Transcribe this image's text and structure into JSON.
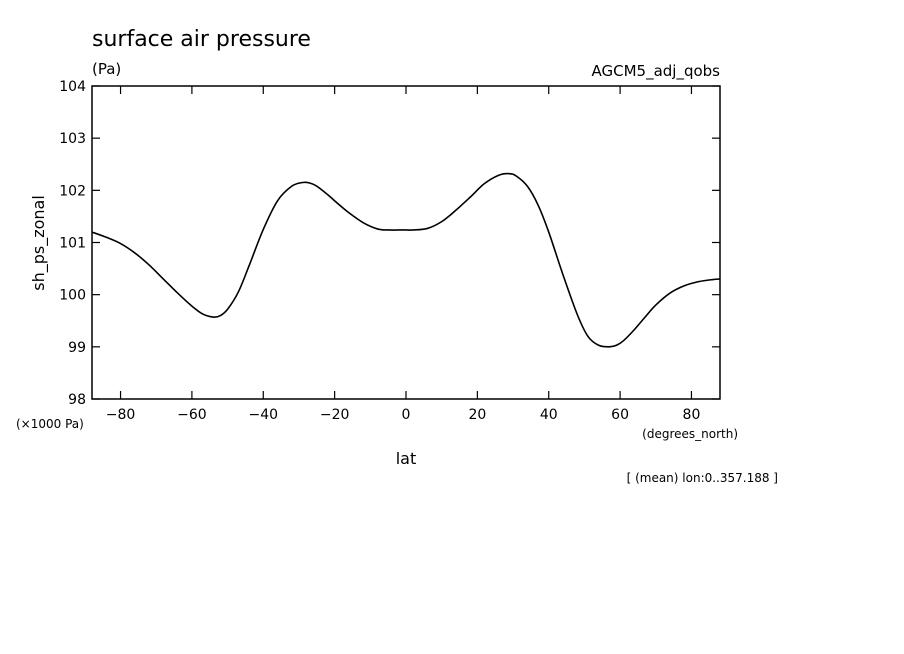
{
  "chart_data": {
    "type": "line",
    "title": "surface air pressure",
    "units_label": "(Pa)",
    "dataset_label": "AGCM5_adj_qobs",
    "xlabel": "lat",
    "x_units": "(degrees_north)",
    "ylabel": "sh_ps_zonal",
    "y_scale_label": "(×1000 Pa)",
    "footnote": "[ (mean) lon:0..357.188 ]",
    "xlim": [
      -88,
      88
    ],
    "ylim": [
      98,
      104
    ],
    "x_ticks": [
      -80,
      -60,
      -40,
      -20,
      0,
      20,
      40,
      60,
      80
    ],
    "x_tick_labels": [
      "−80",
      "−60",
      "−40",
      "−20",
      "0",
      "20",
      "40",
      "60",
      "80"
    ],
    "y_ticks": [
      98,
      99,
      100,
      101,
      102,
      103,
      104
    ],
    "y_tick_labels": [
      "98",
      "99",
      "100",
      "101",
      "102",
      "103",
      "104"
    ],
    "grid": false,
    "line_color": "#000000",
    "series": [
      {
        "x": [
          -88,
          -84,
          -80,
          -76,
          -72,
          -68,
          -64,
          -60,
          -57,
          -54,
          -52,
          -50,
          -47,
          -44,
          -40,
          -36,
          -32,
          -29,
          -27,
          -25,
          -22,
          -19,
          -16,
          -12,
          -8,
          -5,
          -2,
          0,
          2,
          6,
          10,
          14,
          18,
          22,
          26,
          29,
          31,
          34,
          37,
          40,
          44,
          48,
          51,
          54,
          57,
          59,
          61,
          64,
          67,
          70,
          74,
          78,
          82,
          86,
          88
        ],
        "y": [
          101.2,
          101.1,
          100.98,
          100.8,
          100.57,
          100.3,
          100.03,
          99.78,
          99.63,
          99.57,
          99.6,
          99.72,
          100.05,
          100.55,
          101.25,
          101.8,
          102.08,
          102.15,
          102.14,
          102.08,
          101.92,
          101.74,
          101.57,
          101.38,
          101.26,
          101.24,
          101.24,
          101.24,
          101.24,
          101.27,
          101.4,
          101.62,
          101.87,
          102.13,
          102.29,
          102.32,
          102.27,
          102.08,
          101.72,
          101.2,
          100.38,
          99.62,
          99.2,
          99.03,
          99.0,
          99.03,
          99.12,
          99.33,
          99.57,
          99.8,
          100.03,
          100.17,
          100.25,
          100.29,
          100.3
        ]
      }
    ]
  }
}
